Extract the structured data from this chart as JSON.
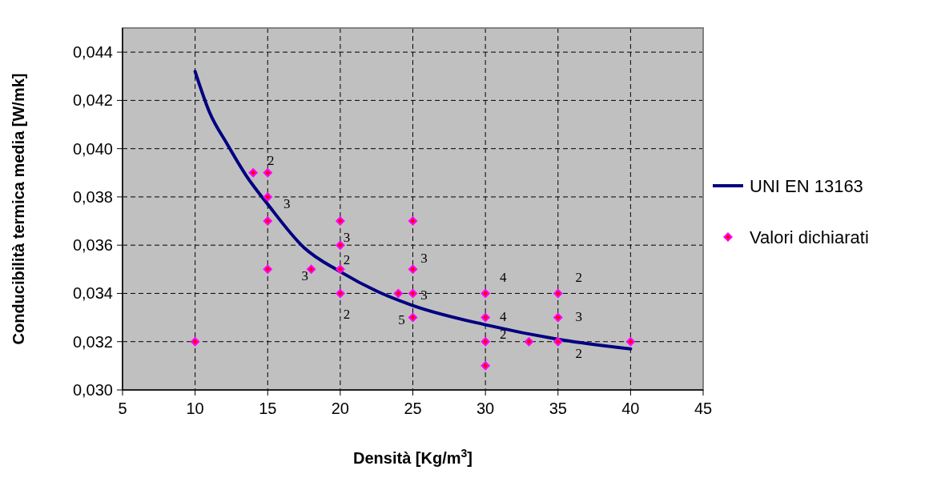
{
  "chart_data": {
    "type": "scatter",
    "xlabel": "Densità [Kg/m$^{3}$]",
    "ylabel": "Conducibilità termica media [W/mk]",
    "xlim": [
      5,
      45
    ],
    "xticks": [
      5,
      10,
      15,
      20,
      25,
      30,
      35,
      40,
      45
    ],
    "ylim": [
      0.03,
      0.045
    ],
    "yticks": [
      {
        "value": 0.03,
        "label": "0,030"
      },
      {
        "value": 0.032,
        "label": "0,032"
      },
      {
        "value": 0.034,
        "label": "0,034"
      },
      {
        "value": 0.036,
        "label": "0,036"
      },
      {
        "value": 0.038,
        "label": "0,038"
      },
      {
        "value": 0.04,
        "label": "0,040"
      },
      {
        "value": 0.042,
        "label": "0,042"
      },
      {
        "value": 0.044,
        "label": "0,044"
      }
    ],
    "grid": true,
    "legend": "right",
    "series": [
      {
        "name": "UNI EN 13163",
        "type": "line",
        "marker": "none",
        "color": "#000080",
        "x": [
          10,
          11,
          12.2,
          13.5,
          15,
          17.5,
          20,
          22.5,
          25,
          30,
          35,
          40
        ],
        "values": [
          0.0432,
          0.0415,
          0.0402,
          0.0389,
          0.0377,
          0.0359,
          0.0349,
          0.0341,
          0.0335,
          0.0327,
          0.0321,
          0.0317
        ]
      },
      {
        "name": "Valori dichiarati",
        "marker": "diamond",
        "color": "#ff00ff",
        "x": [
          10,
          14,
          15,
          15,
          15,
          15,
          18,
          20,
          20,
          20,
          20,
          24,
          25,
          25,
          25,
          25,
          30,
          30,
          30,
          30,
          33,
          35,
          35,
          35,
          40
        ],
        "values": [
          0.032,
          0.039,
          0.039,
          0.038,
          0.037,
          0.035,
          0.035,
          0.037,
          0.036,
          0.035,
          0.034,
          0.034,
          0.037,
          0.035,
          0.034,
          0.033,
          0.034,
          0.033,
          0.032,
          0.031,
          0.032,
          0.034,
          0.033,
          0.032,
          0.032
        ]
      }
    ],
    "annotations": [
      {
        "text": "2",
        "x": 15,
        "y": 0.039
      },
      {
        "text": "3",
        "x": 15,
        "y": 0.038
      },
      {
        "text": "3",
        "x": 18,
        "y": 0.035
      },
      {
        "text": "3",
        "x": 20,
        "y": 0.036
      },
      {
        "text": "2",
        "x": 20,
        "y": 0.035
      },
      {
        "text": "2",
        "x": 20,
        "y": 0.034
      },
      {
        "text": "3",
        "x": 25,
        "y": 0.035
      },
      {
        "text": "3",
        "x": 25,
        "y": 0.034
      },
      {
        "text": "5",
        "x": 25,
        "y": 0.033
      },
      {
        "text": "4",
        "x": 30,
        "y": 0.034
      },
      {
        "text": "4",
        "x": 30,
        "y": 0.033
      },
      {
        "text": "2",
        "x": 30,
        "y": 0.032
      },
      {
        "text": "2",
        "x": 35,
        "y": 0.034
      },
      {
        "text": "3",
        "x": 35,
        "y": 0.033
      },
      {
        "text": "2",
        "x": 35,
        "y": 0.032
      }
    ]
  }
}
